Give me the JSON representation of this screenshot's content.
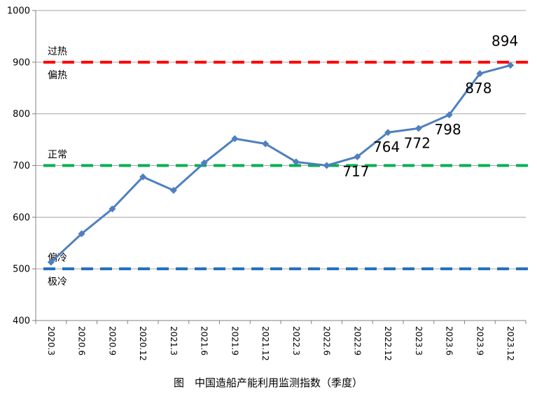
{
  "chart_data": {
    "type": "line",
    "title": "",
    "caption": "图　中国造船产能利用监测指数（季度）",
    "xlabel": "",
    "ylabel": "",
    "ylim": [
      400,
      1000
    ],
    "yticks": [
      "400",
      "500",
      "600",
      "700",
      "800",
      "900",
      "1000"
    ],
    "grid": true,
    "categories": [
      "2020.3",
      "2020.6",
      "2020.9",
      "2020.12",
      "2021.3",
      "2021.6",
      "2021.9",
      "2021.12",
      "2022.3",
      "2022.6",
      "2022.9",
      "2022.12",
      "2023.3",
      "2023.6",
      "2023.9",
      "2023.12"
    ],
    "series": [
      {
        "values": [
          513,
          568,
          616,
          678,
          652,
          705,
          752,
          742,
          707,
          700,
          717,
          764,
          772,
          798,
          878,
          894
        ],
        "color": "#4f7fbf"
      }
    ],
    "data_labels": [
      {
        "index": 10,
        "text": "717",
        "color": "#000000"
      },
      {
        "index": 11,
        "text": "764",
        "color": "#000000"
      },
      {
        "index": 12,
        "text": "772",
        "color": "#000000"
      },
      {
        "index": 13,
        "text": "798",
        "color": "#000000"
      },
      {
        "index": 14,
        "text": "878",
        "color": "#000000"
      },
      {
        "index": 15,
        "text": "894",
        "color": "#ff0000"
      }
    ],
    "thresholds": [
      {
        "value": 900,
        "color": "#ff0000",
        "label_above": "过热",
        "label_below": "偏热"
      },
      {
        "value": 700,
        "color": "#00b050",
        "label_above": "正常",
        "label_below": ""
      },
      {
        "value": 500,
        "color": "#1f6fc0",
        "label_above": "偏冷",
        "label_below": "极冷"
      }
    ]
  }
}
